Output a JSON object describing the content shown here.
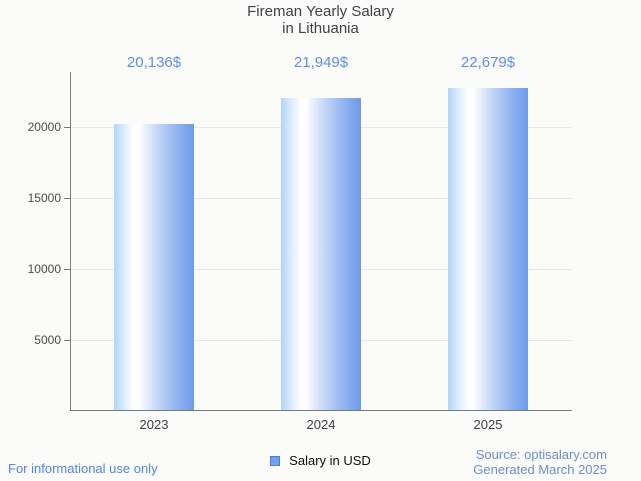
{
  "chart_data": {
    "type": "bar",
    "title": "Fireman Yearly Salary in Lithuania",
    "title_lines": [
      "Fireman Yearly Salary",
      "in Lithuania"
    ],
    "categories": [
      "2023",
      "2024",
      "2025"
    ],
    "values": [
      20136,
      21949,
      22679
    ],
    "value_labels": [
      "20,136$",
      "21,949$",
      "22,679$"
    ],
    "series": [
      {
        "name": "Salary in USD",
        "values": [
          20136,
          21949,
          22679
        ]
      }
    ],
    "xlabel": "",
    "ylabel": "",
    "y_ticks": [
      5000,
      10000,
      15000,
      20000
    ],
    "y_tick_labels": [
      "5000",
      "10000",
      "15000",
      "20000"
    ],
    "ylim": [
      0,
      23870
    ],
    "grid": true,
    "legend_position": "bottom"
  },
  "legend": {
    "label": "Salary in USD",
    "swatch_color": "#6fa3ee"
  },
  "footer": {
    "left_note": "For informational use only",
    "source_line1": "Source: optisalary.com",
    "source_line2": "Generated March 2025"
  },
  "colors": {
    "background": "#fbfbf9",
    "title_text": "#3f4245",
    "value_label_text": "#5d8df3",
    "bar_gradient_left": "#b2d5fa",
    "bar_gradient_mid": "#ffffff",
    "bar_gradient_right": "#6d9ae9",
    "axis_line": "#7a7a7a",
    "gridline": "#e7e7e4",
    "y_tick_text": "#4d4d4d",
    "x_tick_text": "#3c4043",
    "legend_text": "#111111",
    "footer_left_text": "#5583f1",
    "footer_right_text": "#6c8dd6"
  }
}
